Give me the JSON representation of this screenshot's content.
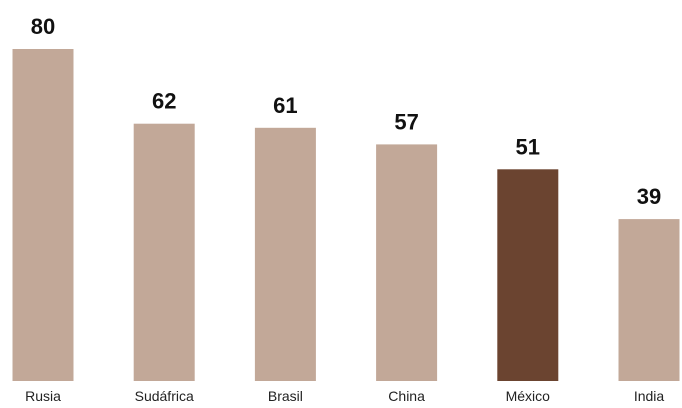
{
  "chart_data": {
    "type": "bar",
    "title": "",
    "xlabel": "",
    "ylabel": "",
    "categories": [
      "Rusia",
      "Sudáfrica",
      "Brasil",
      "China",
      "México",
      "India"
    ],
    "values": [
      80,
      62,
      61,
      57,
      51,
      39
    ],
    "ylim": [
      0,
      80
    ],
    "grid": false,
    "legend": "none",
    "colors": {
      "default": "#c2a898",
      "highlight": "#6b4430",
      "highlight_category": "México"
    }
  }
}
